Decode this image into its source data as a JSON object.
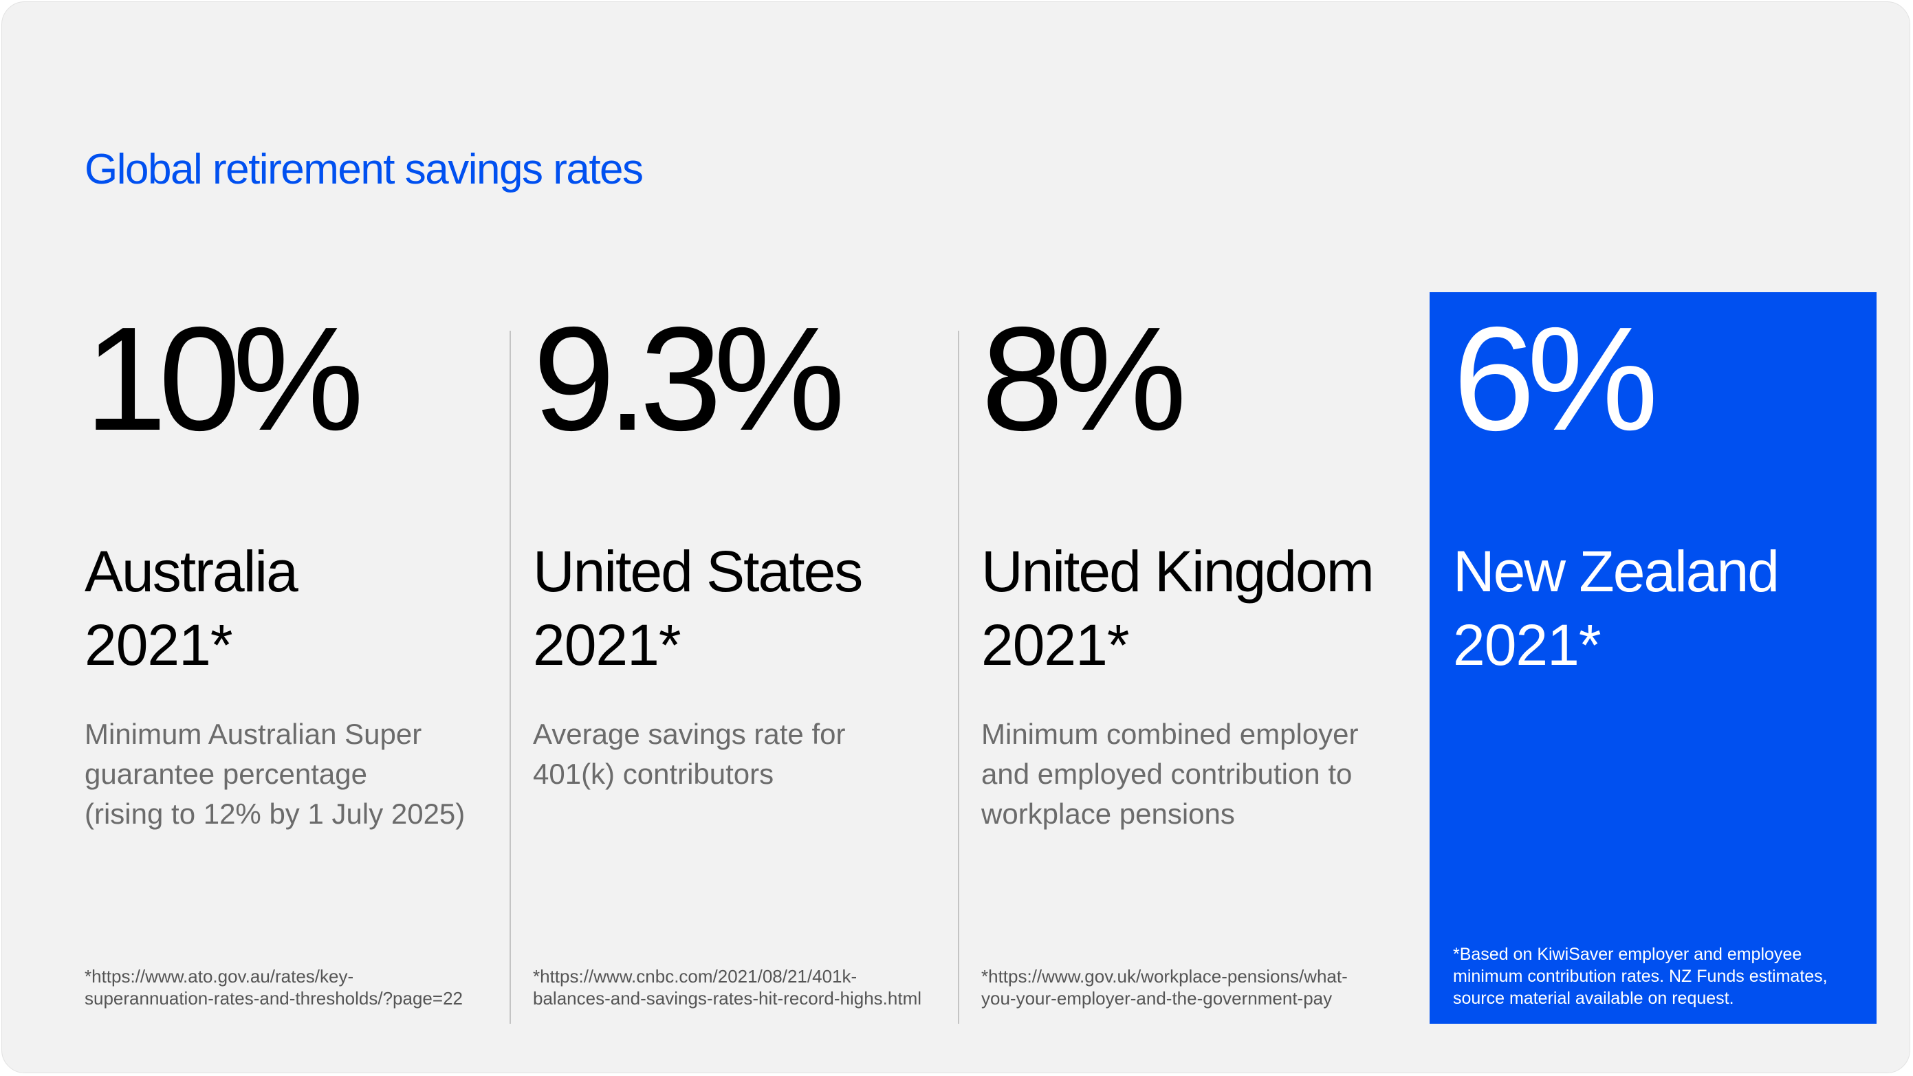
{
  "title": "Global retirement savings rates",
  "colors": {
    "background": "#f2f2f2",
    "title": "#0050f0",
    "highlight": "#0050f0",
    "divider": "#c4c4c4",
    "text": "#000000",
    "muted": "#6b6b6b"
  },
  "chart_data": {
    "type": "table",
    "title": "Global retirement savings rates",
    "unit": "%",
    "categories": [
      "Australia",
      "United States",
      "United Kingdom",
      "New Zealand"
    ],
    "values": [
      10,
      9.3,
      8,
      6
    ],
    "highlighted": "New Zealand",
    "items": [
      {
        "value": "10%",
        "country": "Australia",
        "year": "2021*",
        "description": [
          "Minimum Australian Super",
          "guarantee percentage",
          "(rising to 12% by 1 July 2025)"
        ],
        "source": [
          "*https://www.ato.gov.au/rates/key-",
          "superannuation-rates-and-thresholds/?page=22"
        ]
      },
      {
        "value": "9.3%",
        "country": "United States",
        "year": "2021*",
        "description": [
          "Average savings rate for",
          "401(k) contributors"
        ],
        "source": [
          "*https://www.cnbc.com/2021/08/21/401k-",
          "balances-and-savings-rates-hit-record-highs.html"
        ]
      },
      {
        "value": "8%",
        "country": "United Kingdom",
        "year": "2021*",
        "description": [
          "Minimum combined employer",
          "and employed contribution to",
          "workplace pensions"
        ],
        "source": [
          "*https://www.gov.uk/workplace-pensions/what-",
          "you-your-employer-and-the-government-pay"
        ]
      },
      {
        "value": "6%",
        "country": "New Zealand",
        "year": "2021*",
        "note": [
          "*Based on KiwiSaver employer and employee",
          "minimum contribution rates. NZ Funds estimates,",
          "source material available on request."
        ]
      }
    ]
  }
}
